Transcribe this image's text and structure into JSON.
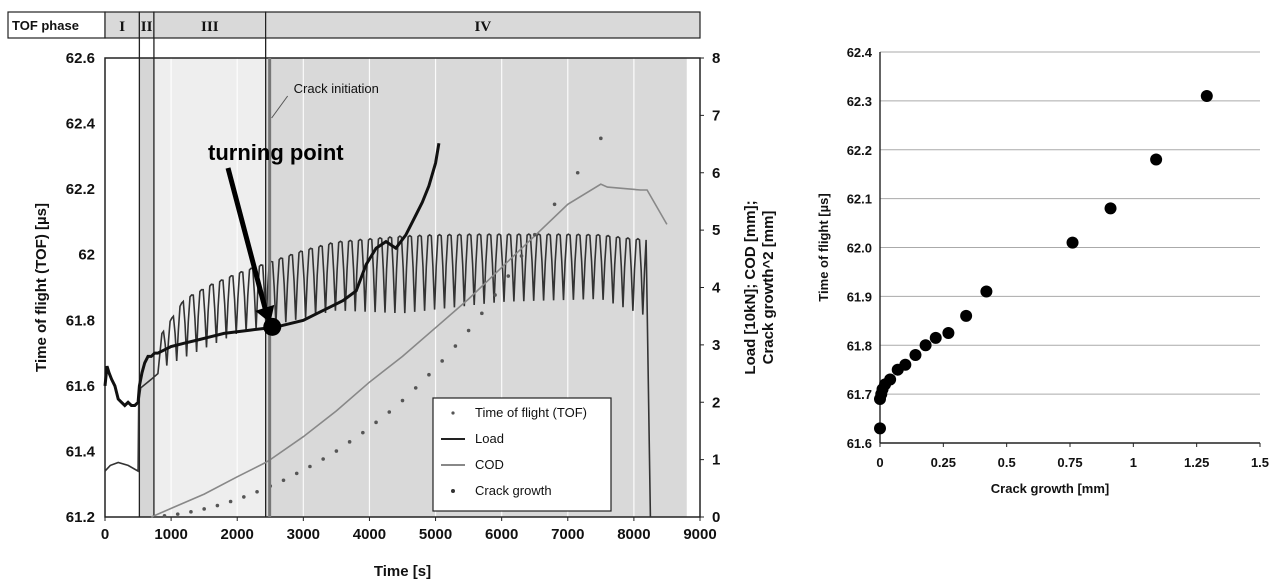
{
  "chart_data": [
    {
      "type": "line",
      "phase_header": {
        "label": "TOF phase",
        "phases": [
          {
            "name": "I",
            "start": 0,
            "end": 520
          },
          {
            "name": "II",
            "start": 520,
            "end": 740
          },
          {
            "name": "III",
            "start": 740,
            "end": 2430
          },
          {
            "name": "IV",
            "start": 2430,
            "end": 8800
          }
        ]
      },
      "xlabel": "Time [s]",
      "ylabel_left": "Time of flight (TOF)  [µs]",
      "ylabel_right": "Load [10kN]; COD [mm];\nCrack growth^2 [mm]",
      "xlim": [
        0,
        9000
      ],
      "ylim_left": [
        61.2,
        62.6
      ],
      "ylim_right": [
        0,
        8
      ],
      "x_ticks": [
        "0",
        "1000",
        "2000",
        "3000",
        "4000",
        "5000",
        "6000",
        "7000",
        "8000",
        "9000"
      ],
      "y_left_ticks": [
        "61.2",
        "61.4",
        "61.6",
        "61.8",
        "62",
        "62.2",
        "62.4",
        "62.6"
      ],
      "y_right_ticks": [
        "0",
        "1",
        "2",
        "3",
        "4",
        "5",
        "6",
        "7",
        "8"
      ],
      "annotations": [
        {
          "text": "Crack initiation",
          "x": 2430
        },
        {
          "text": "turning point",
          "x": 2500,
          "y": 61.78
        }
      ],
      "legend": {
        "position": "bottom-right",
        "entries": [
          "Time of flight (TOF)",
          "Load",
          "COD",
          "Crack growth"
        ]
      },
      "series": [
        {
          "name": "Time of flight (TOF)",
          "axis": "left",
          "x": [
            0,
            30,
            60,
            100,
            150,
            200,
            250,
            300,
            350,
            400,
            450,
            500,
            520,
            560,
            600,
            650,
            700,
            750,
            800,
            900,
            1000,
            1200,
            1400,
            1600,
            1800,
            2000,
            2200,
            2400,
            2600,
            2800,
            3000,
            3200,
            3400,
            3600,
            3800,
            3950,
            4100,
            4250,
            4400,
            4550,
            4700,
            4800,
            4900,
            5000,
            5050
          ],
          "y": [
            61.6,
            61.66,
            61.64,
            61.62,
            61.6,
            61.56,
            61.55,
            61.54,
            61.55,
            61.54,
            61.54,
            61.55,
            61.6,
            61.64,
            61.67,
            61.69,
            61.69,
            61.7,
            61.7,
            61.71,
            61.72,
            61.73,
            61.74,
            61.75,
            61.76,
            61.765,
            61.77,
            61.775,
            61.78,
            61.79,
            61.8,
            61.82,
            61.84,
            61.86,
            61.89,
            61.97,
            62.02,
            62.04,
            62.02,
            62.06,
            62.12,
            62.16,
            62.21,
            62.28,
            62.34
          ]
        },
        {
          "name": "Load",
          "axis": "right",
          "x": [
            0,
            80,
            200,
            350,
            500,
            510,
            540,
            700,
            800,
            860,
            1000,
            1200,
            1600,
            2000,
            2500,
            3000,
            3500,
            4000,
            4500,
            5000,
            5500,
            6000,
            6500,
            7000,
            7500,
            8000,
            8200,
            8250
          ],
          "y": [
            0.8,
            0.9,
            0.95,
            0.9,
            0.8,
            2.0,
            2.25,
            2.4,
            2.5,
            3.2,
            3.45,
            3.8,
            4.05,
            4.25,
            4.45,
            4.65,
            4.8,
            4.85,
            4.9,
            4.92,
            4.93,
            4.93,
            4.93,
            4.93,
            4.92,
            4.85,
            4.85,
            0
          ],
          "cycle_period_s": 150,
          "cycle_start_s": 860,
          "cycle_end_s": 8200,
          "cycle_trough": [
            {
              "x": 860,
              "y": 2.6
            },
            {
              "x": 2000,
              "y": 3.2
            },
            {
              "x": 3500,
              "y": 3.6
            },
            {
              "x": 4500,
              "y": 3.55
            },
            {
              "x": 6000,
              "y": 3.75
            },
            {
              "x": 7500,
              "y": 3.8
            },
            {
              "x": 8200,
              "y": 3.5
            }
          ]
        },
        {
          "name": "COD",
          "axis": "right",
          "x": [
            700,
            1000,
            1500,
            2000,
            2430,
            2500,
            3000,
            3500,
            4000,
            4500,
            5000,
            5500,
            6000,
            6500,
            7000,
            7500,
            7600,
            8100,
            8200,
            8500
          ],
          "y": [
            0.0,
            0.15,
            0.4,
            0.7,
            0.95,
            1.0,
            1.4,
            1.85,
            2.35,
            2.8,
            3.3,
            3.8,
            4.35,
            4.9,
            5.45,
            5.8,
            5.75,
            5.7,
            5.7,
            5.1
          ]
        },
        {
          "name": "Crack growth",
          "axis": "right",
          "x": [
            900,
            1100,
            1300,
            1500,
            1700,
            1900,
            2100,
            2300,
            2500,
            2700,
            2900,
            3100,
            3300,
            3500,
            3700,
            3900,
            4100,
            4300,
            4500,
            4700,
            4900,
            5100,
            5300,
            5500,
            5700,
            5900,
            6100,
            6300,
            6500,
            6800,
            7150,
            7500
          ],
          "y": [
            0.02,
            0.05,
            0.09,
            0.14,
            0.2,
            0.27,
            0.35,
            0.44,
            0.54,
            0.64,
            0.76,
            0.88,
            1.01,
            1.15,
            1.31,
            1.47,
            1.65,
            1.83,
            2.03,
            2.25,
            2.48,
            2.72,
            2.98,
            3.25,
            3.55,
            3.87,
            4.2,
            4.55,
            4.92,
            5.45,
            6.0,
            6.6
          ]
        }
      ]
    },
    {
      "type": "scatter",
      "xlabel": "Crack growth [mm]",
      "ylabel": "Time of flight [µs]",
      "xlim": [
        0,
        1.5
      ],
      "ylim": [
        61.6,
        62.4
      ],
      "x_ticks": [
        "0",
        "0.25",
        "0.5",
        "0.75",
        "1",
        "1.25",
        "1.5"
      ],
      "y_ticks": [
        "61.6",
        "61.7",
        "61.8",
        "61.9",
        "62.0",
        "62.1",
        "62.2",
        "62.3",
        "62.4"
      ],
      "grid": "horizontal",
      "x": [
        0.0,
        0.0,
        0.005,
        0.01,
        0.02,
        0.04,
        0.07,
        0.1,
        0.14,
        0.18,
        0.22,
        0.27,
        0.34,
        0.42,
        0.76,
        0.91,
        1.09,
        1.29
      ],
      "y": [
        61.63,
        61.69,
        61.7,
        61.71,
        61.72,
        61.73,
        61.75,
        61.76,
        61.78,
        61.8,
        61.815,
        61.825,
        61.86,
        61.91,
        62.01,
        62.08,
        62.18,
        62.31
      ]
    }
  ]
}
